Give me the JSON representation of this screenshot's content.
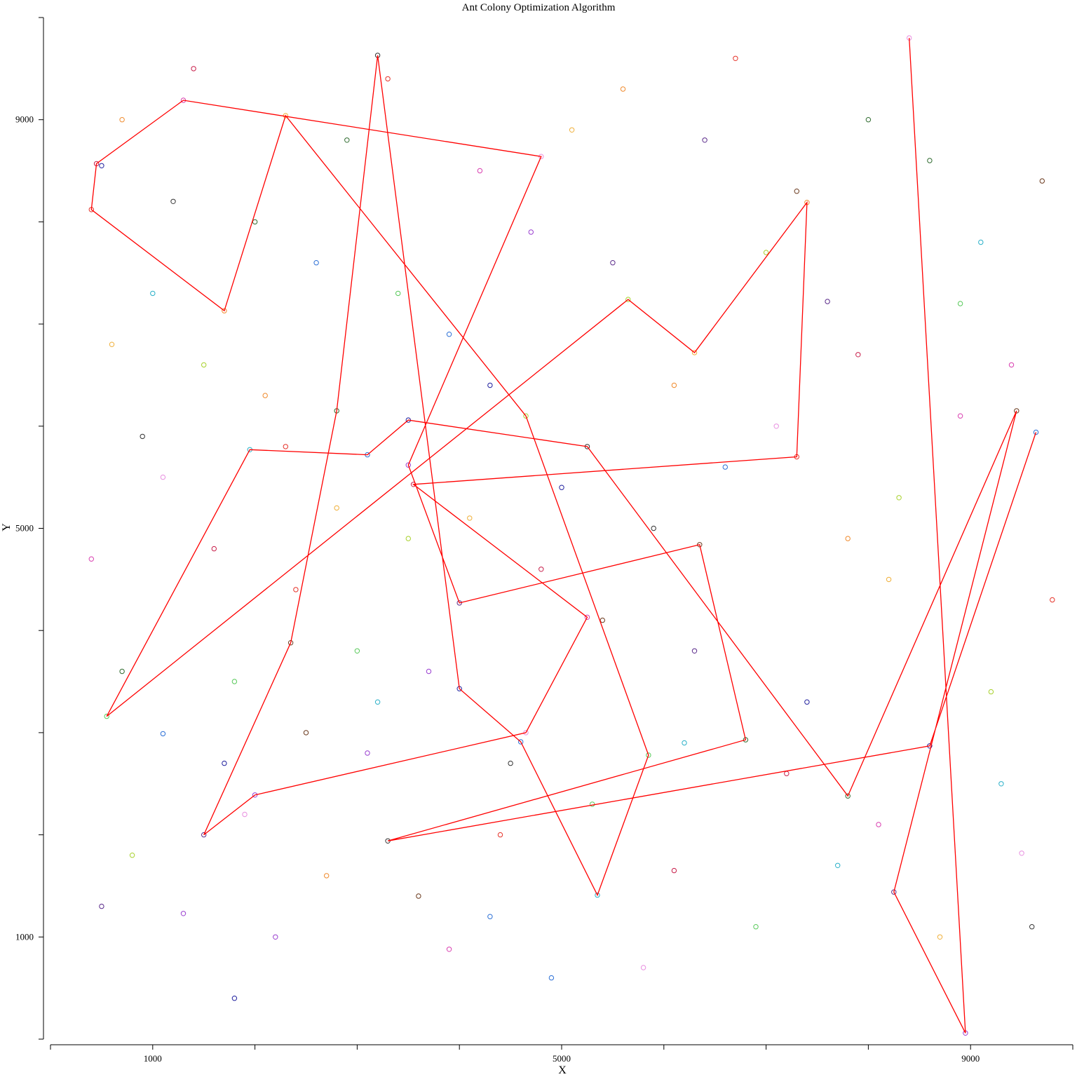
{
  "chart_data": {
    "type": "scatter",
    "title": "Ant Colony Optimization Algorithm",
    "xlabel": "X",
    "ylabel": "Y",
    "xlim": [
      0,
      10000
    ],
    "ylim": [
      0,
      10000
    ],
    "xticks": [
      1000,
      5000,
      9000
    ],
    "yticks": [
      1000,
      5000,
      9000
    ],
    "grid": false,
    "legend": "none",
    "route_color": "#ff0000",
    "city_colors": [
      "#1f1f9e",
      "#2b6fd6",
      "#2ab0c8",
      "#58c95a",
      "#a8d12c",
      "#f0b03a",
      "#f08a2c",
      "#e6332a",
      "#c81e4a",
      "#d93fb0",
      "#e88fe0",
      "#9a3fd0",
      "#5a2a8a",
      "#6b3a1e",
      "#2f6b2f",
      "#333333"
    ],
    "route": [
      [
        8400,
        9800
      ],
      [
        8950,
        60
      ],
      [
        8250,
        1440
      ],
      [
        9450,
        6150
      ],
      [
        7800,
        2380
      ],
      [
        5250,
        5800
      ],
      [
        3500,
        6060
      ],
      [
        3100,
        5720
      ],
      [
        1950,
        5770
      ],
      [
        550,
        3160
      ],
      [
        5650,
        7240
      ],
      [
        6300,
        6720
      ],
      [
        7400,
        8190
      ],
      [
        7300,
        5700
      ],
      [
        3550,
        5430
      ],
      [
        5250,
        4130
      ],
      [
        4650,
        3000
      ],
      [
        2000,
        2390
      ],
      [
        1500,
        2000
      ],
      [
        2350,
        3880
      ],
      [
        2800,
        6150
      ],
      [
        3200,
        9630
      ],
      [
        4000,
        3430
      ],
      [
        4600,
        2910
      ],
      [
        5350,
        1410
      ],
      [
        5850,
        2780
      ],
      [
        4650,
        6100
      ],
      [
        2300,
        9040
      ],
      [
        1700,
        7130
      ],
      [
        400,
        8120
      ],
      [
        450,
        8570
      ],
      [
        1300,
        9190
      ],
      [
        4800,
        8640
      ],
      [
        3500,
        5620
      ],
      [
        4000,
        4270
      ],
      [
        6350,
        4840
      ],
      [
        6800,
        2930
      ],
      [
        3300,
        1940
      ],
      [
        8600,
        2870
      ],
      [
        9640,
        5940
      ]
    ],
    "cities": [
      [
        500,
        8550
      ],
      [
        1100,
        2990
      ],
      [
        3200,
        3300
      ],
      [
        1800,
        3500
      ],
      [
        7000,
        7700
      ],
      [
        8200,
        4500
      ],
      [
        2700,
        1600
      ],
      [
        4400,
        2000
      ],
      [
        6100,
        1650
      ],
      [
        3900,
        880
      ],
      [
        9500,
        1820
      ],
      [
        1300,
        1230
      ],
      [
        7600,
        7220
      ],
      [
        5400,
        4100
      ],
      [
        2000,
        8000
      ],
      [
        900,
        5900
      ],
      [
        4300,
        6400
      ],
      [
        6600,
        5600
      ],
      [
        9100,
        7800
      ],
      [
        3000,
        3800
      ],
      [
        1500,
        6600
      ],
      [
        8700,
        1000
      ],
      [
        5600,
        9300
      ],
      [
        2400,
        4400
      ],
      [
        7200,
        2600
      ],
      [
        400,
        4700
      ],
      [
        1900,
        2200
      ],
      [
        4700,
        7900
      ],
      [
        6300,
        3800
      ],
      [
        3600,
        1400
      ],
      [
        8000,
        9000
      ],
      [
        1200,
        8200
      ],
      [
        5000,
        5400
      ],
      [
        2600,
        7600
      ],
      [
        9300,
        2500
      ],
      [
        6900,
        1100
      ],
      [
        800,
        1800
      ],
      [
        4100,
        5100
      ],
      [
        7800,
        4900
      ],
      [
        3300,
        9400
      ],
      [
        1600,
        4800
      ],
      [
        8900,
        6100
      ],
      [
        5800,
        700
      ],
      [
        2200,
        1000
      ],
      [
        6400,
        8800
      ],
      [
        9700,
        8400
      ],
      [
        700,
        3600
      ],
      [
        4500,
        2700
      ],
      [
        7400,
        3300
      ],
      [
        3900,
        6900
      ],
      [
        1000,
        7300
      ],
      [
        5300,
        2300
      ],
      [
        8300,
        5300
      ],
      [
        2800,
        5200
      ],
      [
        6100,
        6400
      ],
      [
        9800,
        4300
      ],
      [
        1400,
        9500
      ],
      [
        4200,
        8500
      ],
      [
        7100,
        6000
      ],
      [
        3100,
        2800
      ],
      [
        500,
        1300
      ],
      [
        2500,
        3000
      ],
      [
        8600,
        8600
      ],
      [
        5900,
        5000
      ],
      [
        1800,
        400
      ],
      [
        4900,
        600
      ],
      [
        7700,
        1700
      ],
      [
        3400,
        7300
      ],
      [
        9200,
        3400
      ],
      [
        600,
        6800
      ],
      [
        2100,
        6300
      ],
      [
        6700,
        9600
      ],
      [
        4800,
        4600
      ],
      [
        8100,
        2100
      ],
      [
        1100,
        5500
      ],
      [
        3700,
        3600
      ],
      [
        5500,
        7600
      ],
      [
        7300,
        8300
      ],
      [
        2900,
        8800
      ],
      [
        9600,
        1100
      ],
      [
        1700,
        2700
      ],
      [
        4300,
        1200
      ],
      [
        6200,
        2900
      ],
      [
        8900,
        7200
      ],
      [
        3500,
        4900
      ],
      [
        5100,
        8900
      ],
      [
        700,
        9000
      ],
      [
        2300,
        5800
      ],
      [
        7900,
        6700
      ],
      [
        9400,
        6600
      ]
    ]
  }
}
